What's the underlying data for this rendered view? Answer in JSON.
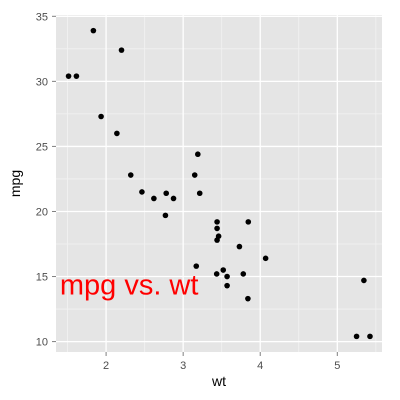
{
  "chart_data": {
    "type": "scatter",
    "xlabel": "wt",
    "ylabel": "mpg",
    "xlim": [
      1.35,
      5.58
    ],
    "ylim": [
      9.2,
      35.1
    ],
    "x_ticks": [
      2,
      3,
      4,
      5
    ],
    "y_ticks": [
      10,
      15,
      20,
      25,
      30,
      35
    ],
    "grid": true,
    "colors": {
      "panel": "#e5e5e5",
      "grid_major": "#ffffff",
      "grid_minor": "#f2f2f2",
      "point": "#000000",
      "annotation": "#ff0000"
    },
    "points": [
      {
        "x": 1.513,
        "y": 30.4
      },
      {
        "x": 1.615,
        "y": 30.4
      },
      {
        "x": 1.835,
        "y": 33.9
      },
      {
        "x": 1.935,
        "y": 27.3
      },
      {
        "x": 2.14,
        "y": 26.0
      },
      {
        "x": 2.2,
        "y": 32.4
      },
      {
        "x": 2.32,
        "y": 22.8
      },
      {
        "x": 2.465,
        "y": 21.5
      },
      {
        "x": 2.62,
        "y": 21.0
      },
      {
        "x": 2.77,
        "y": 19.7
      },
      {
        "x": 2.78,
        "y": 21.4
      },
      {
        "x": 2.875,
        "y": 21.0
      },
      {
        "x": 3.15,
        "y": 22.8
      },
      {
        "x": 3.17,
        "y": 15.8
      },
      {
        "x": 3.19,
        "y": 24.4
      },
      {
        "x": 3.215,
        "y": 21.4
      },
      {
        "x": 3.435,
        "y": 15.2
      },
      {
        "x": 3.44,
        "y": 18.7
      },
      {
        "x": 3.44,
        "y": 19.2
      },
      {
        "x": 3.44,
        "y": 17.8
      },
      {
        "x": 3.46,
        "y": 18.1
      },
      {
        "x": 3.52,
        "y": 15.5
      },
      {
        "x": 3.57,
        "y": 14.3
      },
      {
        "x": 3.57,
        "y": 15.0
      },
      {
        "x": 3.73,
        "y": 17.3
      },
      {
        "x": 3.78,
        "y": 15.2
      },
      {
        "x": 3.84,
        "y": 13.3
      },
      {
        "x": 3.845,
        "y": 19.2
      },
      {
        "x": 4.07,
        "y": 16.4
      },
      {
        "x": 5.25,
        "y": 10.4
      },
      {
        "x": 5.345,
        "y": 14.7
      },
      {
        "x": 5.424,
        "y": 10.4
      }
    ],
    "annotation": {
      "text": "mpg vs. wt",
      "x": 1.4,
      "y": 14.4
    }
  }
}
